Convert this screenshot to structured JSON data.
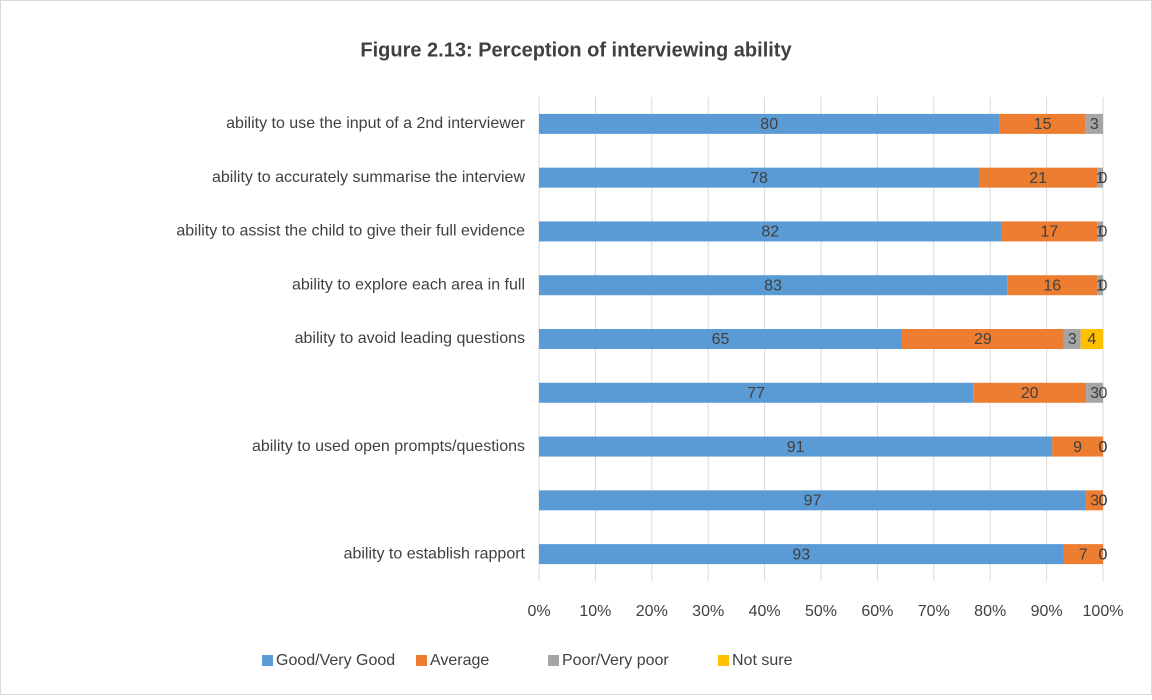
{
  "chart_data": {
    "type": "stacked-bar-100",
    "title": "Figure 2.13: Perception of interviewing ability",
    "categories": [
      "ability to use the input of a 2nd interviewer",
      "ability to accurately summarise the interview",
      "ability to assist the child to give their full evidence",
      "ability to explore each area in full",
      "ability to avoid leading questions",
      null,
      "ability to used open prompts/questions",
      null,
      "ability to establish rapport"
    ],
    "series": [
      {
        "name": "Good/Very Good",
        "color": "#5b9bd5",
        "values": [
          80,
          78,
          82,
          83,
          65,
          77,
          91,
          97,
          93
        ]
      },
      {
        "name": "Average",
        "color": "#ed7d31",
        "values": [
          15,
          21,
          17,
          16,
          29,
          20,
          9,
          3,
          7
        ]
      },
      {
        "name": "Poor/Very poor",
        "color": "#a5a5a5",
        "values": [
          3,
          1,
          1,
          1,
          3,
          3,
          0,
          0,
          0
        ]
      },
      {
        "name": "Not sure",
        "color": "#ffc000",
        "values": [
          null,
          0,
          0,
          0,
          4,
          0,
          0,
          0,
          0
        ]
      }
    ],
    "xlim": [
      0,
      100
    ],
    "xticks": [
      {
        "value": 0,
        "label": "0%"
      },
      {
        "value": 10,
        "label": "10%"
      },
      {
        "value": 20,
        "label": "20%"
      },
      {
        "value": 30,
        "label": "30%"
      },
      {
        "value": 40,
        "label": "40%"
      },
      {
        "value": 50,
        "label": "50%"
      },
      {
        "value": 60,
        "label": "60%"
      },
      {
        "value": 70,
        "label": "70%"
      },
      {
        "value": 80,
        "label": "80%"
      },
      {
        "value": 90,
        "label": "90%"
      },
      {
        "value": 100,
        "label": "100%"
      }
    ],
    "grid": true,
    "legend": "bottom"
  }
}
